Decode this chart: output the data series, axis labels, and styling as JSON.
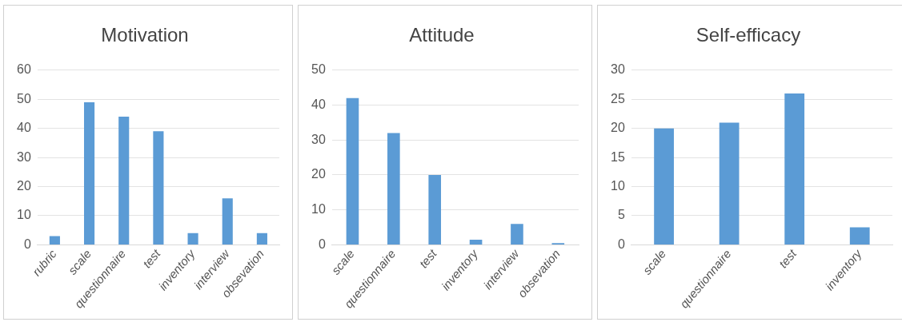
{
  "chart_data": [
    {
      "type": "bar",
      "title": "Motivation",
      "categories": [
        "rubric",
        "scale",
        "questionnaire",
        "test",
        "inventory",
        "interview",
        "obsevation"
      ],
      "values": [
        3,
        49,
        44,
        39,
        4,
        16,
        4
      ],
      "color": "#5b9bd5",
      "ylim": [
        0,
        60
      ],
      "yticks": [
        0,
        10,
        20,
        30,
        40,
        50,
        60
      ],
      "grid": "y"
    },
    {
      "type": "bar",
      "title": "Attitude",
      "categories": [
        "scale",
        "questionnaire",
        "test",
        "inventory",
        "interview",
        "obsevation"
      ],
      "values": [
        42,
        32,
        20,
        1.5,
        6,
        0.5
      ],
      "color": "#5b9bd5",
      "ylim": [
        0,
        50
      ],
      "yticks": [
        0,
        10,
        20,
        30,
        40,
        50
      ],
      "grid": "y"
    },
    {
      "type": "bar",
      "title": "Self-efficacy",
      "categories": [
        "scale",
        "questionnaire",
        "test",
        "inventory"
      ],
      "values": [
        20,
        21,
        26,
        3
      ],
      "color": "#5b9bd5",
      "ylim": [
        0,
        30
      ],
      "yticks": [
        0,
        5,
        10,
        15,
        20,
        25,
        30
      ],
      "grid": "y"
    }
  ]
}
